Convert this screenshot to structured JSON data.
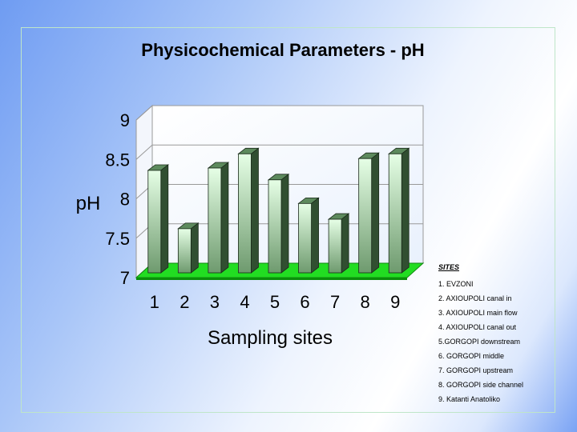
{
  "chart_data": {
    "type": "bar",
    "title": "Physicochemical Parameters - pH",
    "xlabel": "Sampling sites",
    "ylabel": "pH",
    "categories": [
      "1",
      "2",
      "3",
      "4",
      "5",
      "6",
      "7",
      "8",
      "9"
    ],
    "values": [
      8.32,
      7.58,
      8.35,
      8.53,
      8.2,
      7.9,
      7.7,
      8.47,
      8.53
    ],
    "ylim": [
      7,
      9
    ],
    "yticks": [
      "7",
      "7.5",
      "8",
      "8.5",
      "9"
    ],
    "grid": true,
    "legend": "none",
    "colors": {
      "bar_top": "#e6ffe6",
      "bar_bottom": "#6e9a6e",
      "floor": "#22dd22",
      "grid": "#999999"
    }
  },
  "sites_legend": {
    "header": "SITES",
    "items": [
      "1. EVZONI",
      "2. AXIOUPOLI  canal in",
      "3. AXIOUPOLI  main flow",
      "4. AXIOUPOLI  canal out",
      "5.GORGOPI downstream",
      "6. GORGOPI  middle",
      "7. GORGOPI  upstream",
      "8. GORGOPI  side channel",
      "9. Katanti  Anatoliko"
    ]
  }
}
